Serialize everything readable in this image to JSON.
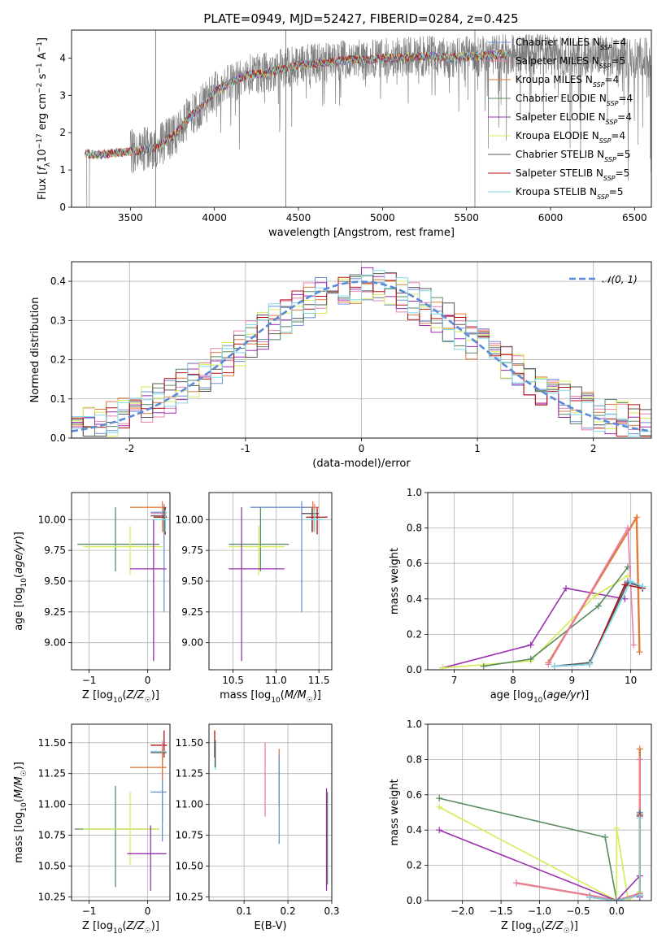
{
  "title": "PLATE=0949, MJD=52427, FIBERID=0284, z=0.425",
  "colors": {
    "Chabrier MILES": "#6b8fd6",
    "Salpeter MILES": "#e87fb0",
    "Kroupa MILES": "#e07b39",
    "Chabrier ELODIE": "#5a8a60",
    "Salpeter ELODIE": "#9c2fb0",
    "Kroupa ELODIE": "#d4ec54",
    "Chabrier STELIB": "#555555",
    "Salpeter STELIB": "#b11212",
    "Kroupa STELIB": "#7fd8e6",
    "data": "#808080",
    "gauss": "#5b8ad6"
  },
  "legend_spectrum": [
    {
      "model": "Chabrier MILES",
      "n": "4"
    },
    {
      "model": "Salpeter MILES",
      "n": "5"
    },
    {
      "model": "Kroupa MILES",
      "n": "4"
    },
    {
      "model": "Chabrier ELODIE",
      "n": "4"
    },
    {
      "model": "Salpeter ELODIE",
      "n": "4"
    },
    {
      "model": "Kroupa ELODIE",
      "n": "4"
    },
    {
      "model": "Chabrier STELIB",
      "n": "5"
    },
    {
      "model": "Salpeter STELIB",
      "n": "5"
    },
    {
      "model": "Kroupa STELIB",
      "n": "5"
    }
  ],
  "legend_gauss": "𝒩(0, 1)",
  "chart_data": [
    {
      "id": "spectrum",
      "type": "line",
      "xlabel": "wavelength [Angstrom, rest frame]",
      "ylabel": "Flux [f_λ 10^-17 erg cm^-2 s^-1 A^-1]",
      "xlim": [
        3150,
        6600
      ],
      "ylim": [
        0,
        4.75
      ],
      "xticks": [
        3500,
        4000,
        4500,
        5000,
        5500,
        6000,
        6500
      ],
      "yticks": [
        0,
        1,
        2,
        3,
        4
      ],
      "continuum": [
        [
          3230,
          1.45
        ],
        [
          3300,
          1.4
        ],
        [
          3400,
          1.45
        ],
        [
          3500,
          1.5
        ],
        [
          3650,
          1.6
        ],
        [
          3750,
          1.9
        ],
        [
          3850,
          2.4
        ],
        [
          3950,
          2.8
        ],
        [
          4000,
          3.1
        ],
        [
          4100,
          3.35
        ],
        [
          4200,
          3.55
        ],
        [
          4300,
          3.6
        ],
        [
          4400,
          3.7
        ],
        [
          4500,
          3.8
        ],
        [
          4600,
          3.85
        ],
        [
          4700,
          3.9
        ],
        [
          4800,
          3.95
        ],
        [
          4900,
          3.95
        ],
        [
          5000,
          4.0
        ],
        [
          5100,
          4.0
        ],
        [
          5200,
          4.05
        ],
        [
          5300,
          4.05
        ],
        [
          5400,
          4.0
        ],
        [
          5500,
          4.05
        ],
        [
          5600,
          4.05
        ],
        [
          5700,
          4.1
        ],
        [
          5800,
          4.1
        ],
        [
          5900,
          4.1
        ],
        [
          6000,
          4.1
        ],
        [
          6100,
          4.05
        ],
        [
          6200,
          4.05
        ],
        [
          6300,
          4.05
        ],
        [
          6400,
          4.0
        ],
        [
          6500,
          4.0
        ]
      ],
      "grid": false,
      "legend": "upper right"
    },
    {
      "id": "residuals",
      "type": "line",
      "xlabel": "(data-model)/error",
      "ylabel": "Normed distribution",
      "xlim": [
        -2.5,
        2.5
      ],
      "ylim": [
        0,
        0.45
      ],
      "xticks": [
        -2,
        -1,
        0,
        1,
        2
      ],
      "yticks": [
        0.0,
        0.1,
        0.2,
        0.3,
        0.4
      ],
      "bin_width": 0.1,
      "gaussian": {
        "mu": 0,
        "sigma": 1
      },
      "grid": true,
      "legend": "upper right"
    },
    {
      "id": "age_vs_Z",
      "type": "scatter",
      "xlabel": "Z [log10(Z/Z☉)]",
      "ylabel": "age [log10(age/yr)]",
      "xlim": [
        -1.3,
        0.38
      ],
      "ylim": [
        8.78,
        10.22
      ],
      "xticks": [
        -1,
        0
      ],
      "yticks": [
        9.0,
        9.25,
        9.5,
        9.75,
        10.0
      ],
      "points": [
        {
          "model": "Kroupa MILES",
          "x": 0.25,
          "xl": -0.3,
          "xh": 0.32,
          "y": 10.1,
          "yl": 9.9,
          "yh": 10.15
        },
        {
          "model": "Salpeter MILES",
          "x": 0.28,
          "xl": 0.05,
          "xh": 0.32,
          "y": 10.05,
          "yl": 9.95,
          "yh": 10.13
        },
        {
          "model": "Chabrier MILES",
          "x": 0.28,
          "xl": 0.05,
          "xh": 0.32,
          "y": 10.06,
          "yl": 9.25,
          "yh": 10.12
        },
        {
          "model": "Chabrier STELIB",
          "x": 0.28,
          "xl": 0.05,
          "xh": 0.32,
          "y": 10.03,
          "yl": 9.9,
          "yh": 10.1
        },
        {
          "model": "Salpeter STELIB",
          "x": 0.3,
          "xl": 0.1,
          "xh": 0.33,
          "y": 10.02,
          "yl": 9.88,
          "yh": 10.1
        },
        {
          "model": "Kroupa STELIB",
          "x": 0.3,
          "xl": 0.1,
          "xh": 0.33,
          "y": 10.0,
          "yl": 9.9,
          "yh": 10.08
        },
        {
          "model": "Chabrier ELODIE",
          "x": -0.55,
          "xl": -1.2,
          "xh": 0.2,
          "y": 9.8,
          "yl": 9.58,
          "yh": 10.1
        },
        {
          "model": "Kroupa ELODIE",
          "x": -0.3,
          "xl": -1.1,
          "xh": 0.25,
          "y": 9.78,
          "yl": 9.55,
          "yh": 9.95
        },
        {
          "model": "Salpeter ELODIE",
          "x": 0.1,
          "xl": -0.3,
          "xh": 0.32,
          "y": 9.6,
          "yl": 8.85,
          "yh": 10.0
        }
      ]
    },
    {
      "id": "age_vs_mass",
      "type": "scatter",
      "xlabel": "mass [log10(M/M☉)]",
      "ylabel": "",
      "xlim": [
        10.22,
        11.65
      ],
      "ylim": [
        8.78,
        10.22
      ],
      "xticks": [
        10.5,
        11.0,
        11.5
      ],
      "yticks": [
        9.0,
        9.25,
        9.5,
        9.75,
        10.0
      ],
      "points": [
        {
          "model": "Kroupa MILES",
          "x": 11.43,
          "xl": 11.3,
          "xh": 11.5,
          "y": 10.1,
          "yl": 9.9,
          "yh": 10.15
        },
        {
          "model": "Salpeter MILES",
          "x": 11.45,
          "xl": 11.3,
          "xh": 11.5,
          "y": 10.05,
          "yl": 9.9,
          "yh": 10.13
        },
        {
          "model": "Chabrier MILES",
          "x": 11.3,
          "xl": 10.7,
          "xh": 11.4,
          "y": 10.1,
          "yl": 9.25,
          "yh": 10.15
        },
        {
          "model": "Chabrier STELIB",
          "x": 11.42,
          "xl": 11.3,
          "xh": 11.5,
          "y": 10.05,
          "yl": 9.9,
          "yh": 10.1
        },
        {
          "model": "Salpeter STELIB",
          "x": 11.48,
          "xl": 11.35,
          "xh": 11.6,
          "y": 10.02,
          "yl": 9.88,
          "yh": 10.1
        },
        {
          "model": "Kroupa STELIB",
          "x": 11.45,
          "xl": 11.35,
          "xh": 11.55,
          "y": 10.0,
          "yl": 9.9,
          "yh": 10.08
        },
        {
          "model": "Chabrier ELODIE",
          "x": 10.82,
          "xl": 10.45,
          "xh": 11.15,
          "y": 9.8,
          "yl": 9.58,
          "yh": 10.1
        },
        {
          "model": "Kroupa ELODIE",
          "x": 10.8,
          "xl": 10.45,
          "xh": 11.1,
          "y": 9.78,
          "yl": 9.55,
          "yh": 9.95
        },
        {
          "model": "Salpeter ELODIE",
          "x": 10.6,
          "xl": 10.45,
          "xh": 11.1,
          "y": 9.6,
          "yl": 8.85,
          "yh": 10.1
        }
      ]
    },
    {
      "id": "weight_vs_age",
      "type": "line",
      "xlabel": "age [log10(age/yr)]",
      "ylabel": "mass weight",
      "xlim": [
        6.55,
        10.35
      ],
      "ylim": [
        0,
        1.0
      ],
      "xticks": [
        7,
        8,
        9,
        10
      ],
      "yticks": [
        0.0,
        0.2,
        0.4,
        0.6,
        0.8,
        1.0
      ],
      "series": [
        {
          "model": "Salpeter ELODIE",
          "x": [
            6.8,
            8.3,
            8.9,
            9.9
          ],
          "y": [
            0.01,
            0.14,
            0.46,
            0.4
          ]
        },
        {
          "model": "Kroupa ELODIE",
          "x": [
            6.8,
            8.3,
            9.4,
            9.95
          ],
          "y": [
            0.01,
            0.05,
            0.42,
            0.53
          ]
        },
        {
          "model": "Chabrier ELODIE",
          "x": [
            7.5,
            8.3,
            9.45,
            9.95
          ],
          "y": [
            0.02,
            0.06,
            0.36,
            0.58
          ]
        },
        {
          "model": "Kroupa MILES",
          "x": [
            8.6,
            10.1,
            10.15
          ],
          "y": [
            0.04,
            0.86,
            0.1
          ]
        },
        {
          "model": "Salpeter MILES",
          "x": [
            8.6,
            9.95,
            10.05
          ],
          "y": [
            0.03,
            0.8,
            0.14
          ]
        },
        {
          "model": "Chabrier MILES",
          "x": [
            8.7,
            9.3,
            9.95,
            10.2
          ],
          "y": [
            0.02,
            0.03,
            0.5,
            0.46
          ]
        },
        {
          "model": "Chabrier STELIB",
          "x": [
            8.7,
            9.3,
            9.95,
            10.2
          ],
          "y": [
            0.02,
            0.04,
            0.49,
            0.47
          ]
        },
        {
          "model": "Salpeter STELIB",
          "x": [
            8.7,
            9.3,
            9.9,
            10.2
          ],
          "y": [
            0.02,
            0.03,
            0.48,
            0.46
          ]
        },
        {
          "model": "Kroupa STELIB",
          "x": [
            8.7,
            9.3,
            10.0,
            10.2
          ],
          "y": [
            0.02,
            0.03,
            0.5,
            0.47
          ]
        }
      ],
      "grid": true
    },
    {
      "id": "mass_vs_Z",
      "type": "scatter",
      "xlabel": "Z [log10(Z/Z☉)]",
      "ylabel": "mass [log10(M/M☉)]",
      "xlim": [
        -1.3,
        0.38
      ],
      "ylim": [
        10.22,
        11.65
      ],
      "xticks": [
        -1,
        0
      ],
      "yticks": [
        10.25,
        10.5,
        10.75,
        11.0,
        11.25,
        11.5
      ],
      "points": [
        {
          "model": "Salpeter STELIB",
          "x": 0.28,
          "xl": 0.05,
          "xh": 0.33,
          "y": 11.48,
          "yl": 11.38,
          "yh": 11.6
        },
        {
          "model": "Kroupa STELIB",
          "x": 0.25,
          "xl": 0.05,
          "xh": 0.32,
          "y": 11.43,
          "yl": 11.3,
          "yh": 11.52
        },
        {
          "model": "Chabrier STELIB",
          "x": 0.25,
          "xl": 0.05,
          "xh": 0.32,
          "y": 11.42,
          "yl": 11.3,
          "yh": 11.5
        },
        {
          "model": "Salpeter MILES",
          "x": 0.25,
          "xl": -0.3,
          "xh": 0.32,
          "y": 11.3,
          "yl": 11.15,
          "yh": 11.5
        },
        {
          "model": "Kroupa MILES",
          "x": 0.25,
          "xl": -0.3,
          "xh": 0.32,
          "y": 11.3,
          "yl": 10.85,
          "yh": 11.45
        },
        {
          "model": "Chabrier MILES",
          "x": 0.25,
          "xl": 0.05,
          "xh": 0.32,
          "y": 11.1,
          "yl": 10.7,
          "yh": 11.2
        },
        {
          "model": "Chabrier ELODIE",
          "x": -0.55,
          "xl": -1.25,
          "xh": 0.2,
          "y": 10.8,
          "yl": 10.33,
          "yh": 11.15
        },
        {
          "model": "Kroupa ELODIE",
          "x": -0.3,
          "xl": -1.1,
          "xh": 0.2,
          "y": 10.8,
          "yl": 10.5,
          "yh": 11.1
        },
        {
          "model": "Salpeter ELODIE",
          "x": 0.05,
          "xl": -0.35,
          "xh": 0.32,
          "y": 10.6,
          "yl": 10.3,
          "yh": 10.83
        }
      ]
    },
    {
      "id": "mass_vs_ebv",
      "type": "scatter",
      "xlabel": "E(B-V)",
      "ylabel": "",
      "xlim": [
        0.02,
        0.3
      ],
      "ylim": [
        10.22,
        11.65
      ],
      "xticks": [
        0.1,
        0.2,
        0.3
      ],
      "yticks": [
        10.25,
        10.5,
        10.75,
        11.0,
        11.25,
        11.5
      ],
      "points": [
        {
          "model": "Salpeter STELIB",
          "x": 0.033,
          "y": 11.5,
          "yl": 11.38,
          "yh": 11.6
        },
        {
          "model": "Kroupa STELIB",
          "x": 0.035,
          "y": 11.43,
          "yl": 11.28,
          "yh": 11.52
        },
        {
          "model": "Chabrier STELIB",
          "x": 0.034,
          "y": 11.42,
          "yl": 11.3,
          "yh": 11.52
        },
        {
          "model": "Salpeter MILES",
          "x": 0.148,
          "y": 11.3,
          "yl": 10.9,
          "yh": 11.5
        },
        {
          "model": "Kroupa MILES",
          "x": 0.18,
          "y": 11.25,
          "yl": 10.98,
          "yh": 11.45
        },
        {
          "model": "Chabrier MILES",
          "x": 0.18,
          "y": 11.1,
          "yl": 10.68,
          "yh": 11.4
        },
        {
          "model": "Kroupa ELODIE",
          "x": 0.288,
          "y": 10.8,
          "yl": 10.35,
          "yh": 11.1
        },
        {
          "model": "Chabrier ELODIE",
          "x": 0.29,
          "y": 10.8,
          "yl": 10.35,
          "yh": 11.1
        },
        {
          "model": "Salpeter ELODIE",
          "x": 0.288,
          "y": 10.6,
          "yl": 10.3,
          "yh": 11.13
        }
      ]
    },
    {
      "id": "weight_vs_Z",
      "type": "line",
      "xlabel": "Z [log10(Z/Z☉)]",
      "ylabel": "mass weight",
      "xlim": [
        -2.45,
        0.45
      ],
      "ylim": [
        0,
        1.0
      ],
      "xticks": [
        -2.0,
        -1.5,
        -1.0,
        -0.5,
        0.0
      ],
      "yticks": [
        0.0,
        0.2,
        0.4,
        0.6,
        0.8,
        1.0
      ],
      "series": [
        {
          "model": "Chabrier ELODIE",
          "x": [
            -2.3,
            -0.15,
            0.0,
            0.3
          ],
          "y": [
            0.58,
            0.36,
            0.0,
            0.04
          ]
        },
        {
          "model": "Kroupa ELODIE",
          "x": [
            -2.3,
            0.0,
            0.0,
            0.15,
            0.3
          ],
          "y": [
            0.53,
            0.0,
            0.41,
            0.0,
            0.05
          ]
        },
        {
          "model": "Salpeter ELODIE",
          "x": [
            -2.3,
            0.0,
            0.3,
            0.3
          ],
          "y": [
            0.4,
            0.0,
            0.14,
            0.02
          ]
        },
        {
          "model": "Kroupa MILES",
          "x": [
            -1.3,
            -0.35,
            0.0,
            0.3,
            0.3
          ],
          "y": [
            0.1,
            0.03,
            0.0,
            0.04,
            0.86
          ]
        },
        {
          "model": "Salpeter MILES",
          "x": [
            -1.3,
            -0.35,
            0.0,
            0.3,
            0.3
          ],
          "y": [
            0.1,
            0.03,
            0.0,
            0.04,
            0.8
          ]
        },
        {
          "model": "Chabrier MILES",
          "x": [
            -0.35,
            0.0,
            0.3,
            0.3
          ],
          "y": [
            0.02,
            0.0,
            0.03,
            0.5
          ]
        },
        {
          "model": "Chabrier STELIB",
          "x": [
            -0.35,
            0.0,
            0.3,
            0.3
          ],
          "y": [
            0.02,
            0.0,
            0.03,
            0.49
          ]
        },
        {
          "model": "Salpeter STELIB",
          "x": [
            -0.35,
            0.0,
            0.3,
            0.3
          ],
          "y": [
            0.02,
            0.0,
            0.03,
            0.48
          ]
        },
        {
          "model": "Kroupa STELIB",
          "x": [
            -0.35,
            0.0,
            0.3,
            0.3
          ],
          "y": [
            0.02,
            0.0,
            0.03,
            0.47
          ]
        }
      ],
      "grid": true
    }
  ]
}
